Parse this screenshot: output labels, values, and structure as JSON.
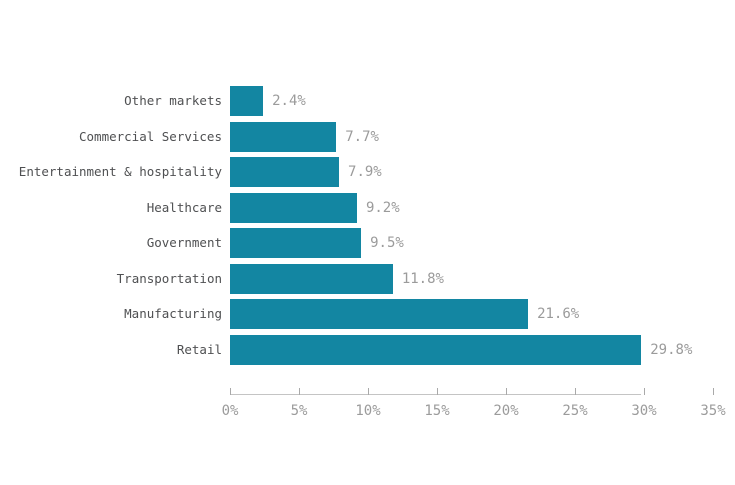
{
  "chart_data": {
    "type": "bar",
    "orientation": "horizontal",
    "title": "",
    "xlabel": "",
    "ylabel": "",
    "categories": [
      "Other markets",
      "Commercial Services",
      "Entertainment & hospitality",
      "Healthcare",
      "Government",
      "Transportation",
      "Manufacturing",
      "Retail"
    ],
    "values": [
      2.4,
      7.7,
      7.9,
      9.2,
      9.5,
      11.8,
      21.6,
      29.8
    ],
    "value_labels": [
      "2.4%",
      "7.7%",
      "7.9%",
      "9.2%",
      "9.5%",
      "11.8%",
      "21.6%",
      "29.8%"
    ],
    "xlim": [
      0,
      35
    ],
    "x_ticks": [
      0,
      5,
      10,
      15,
      20,
      25,
      30,
      35
    ],
    "x_tick_labels": [
      "0%",
      "5%",
      "10%",
      "15%",
      "20%",
      "25%",
      "30%",
      "35%"
    ],
    "grid": false,
    "legend": false,
    "axis_line_extends_to_max_value": true,
    "colors": {
      "bar": "#1386a2",
      "category_label": "#4f5052",
      "value_label": "#9b9b9b",
      "axis_tick_label": "#9b9b9b",
      "axis_line": "#c4c4c4",
      "tick": "#a9a9a9",
      "background": "#ffffff"
    }
  }
}
